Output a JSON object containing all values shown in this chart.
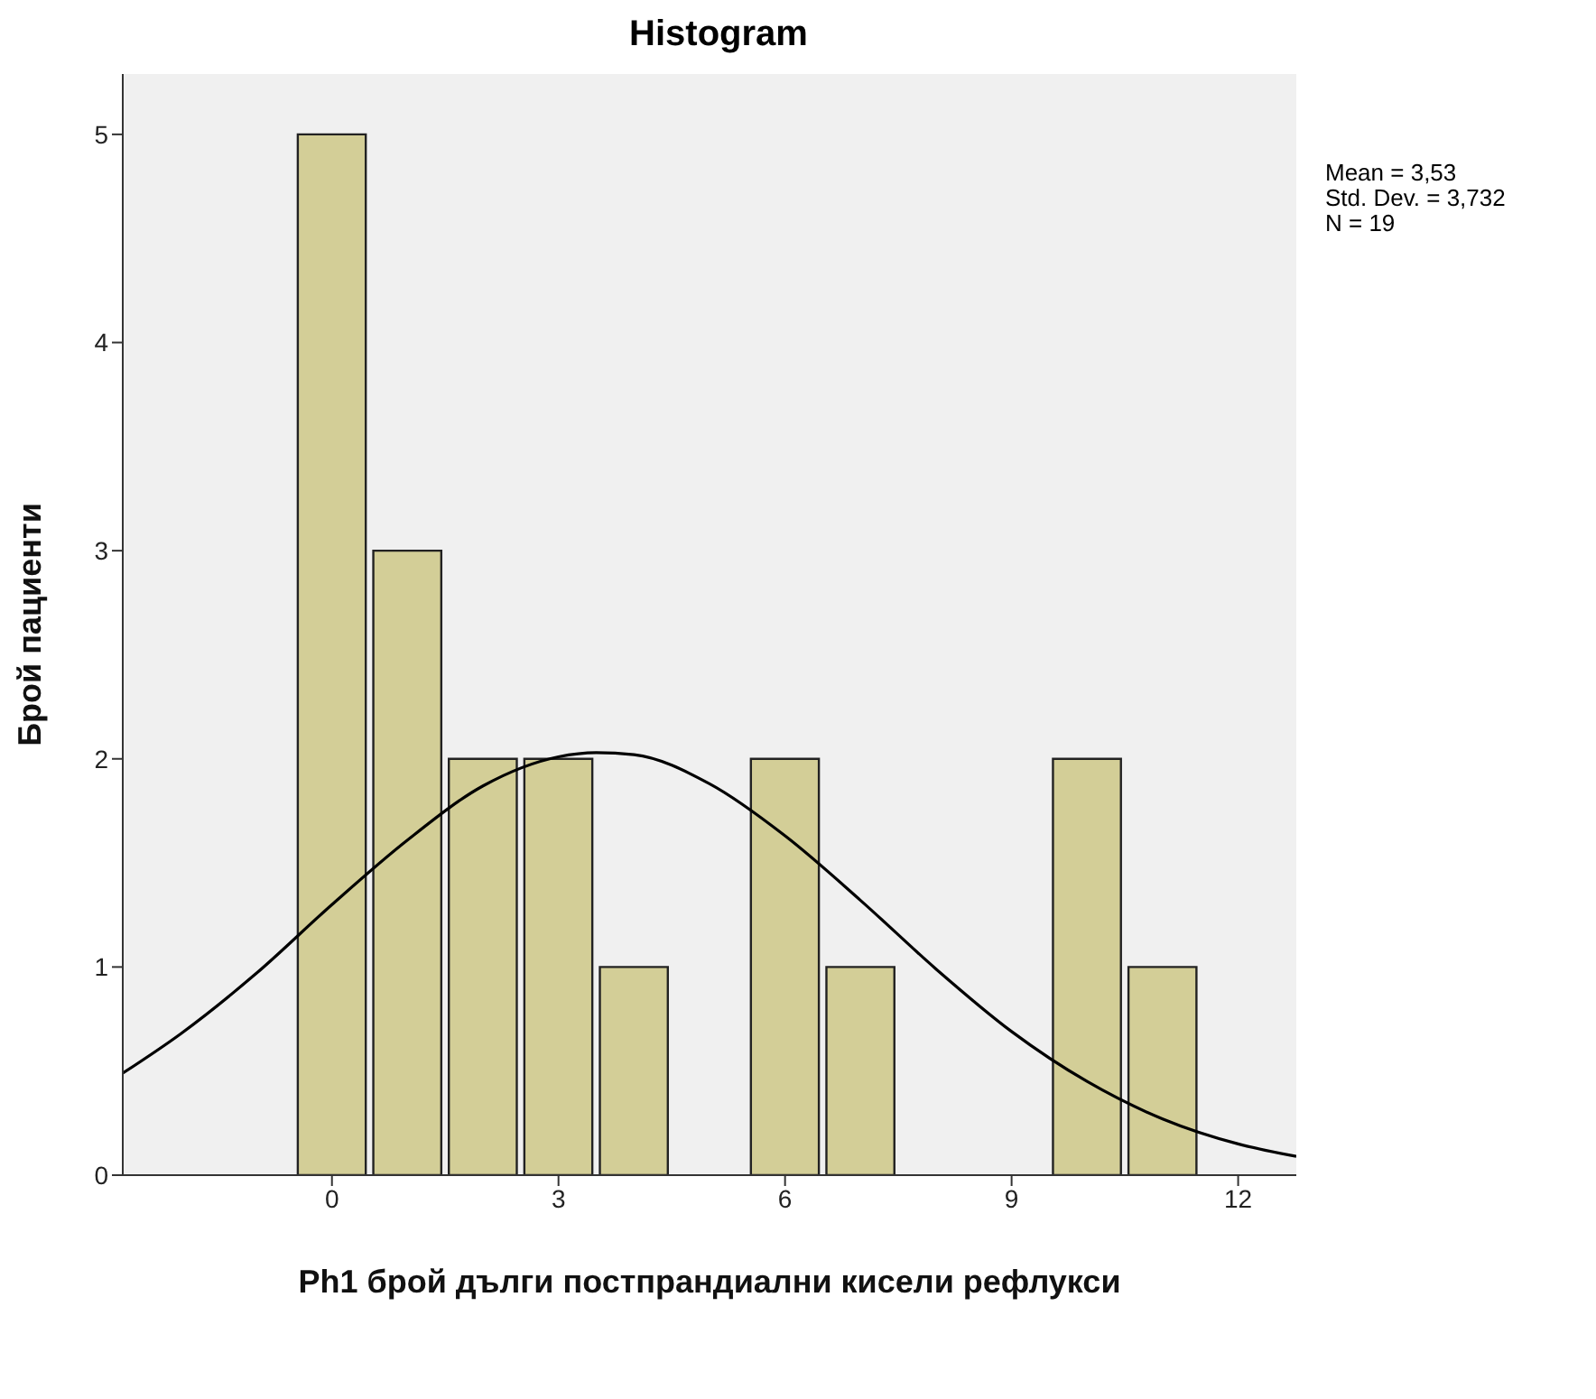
{
  "chart_data": {
    "type": "histogram",
    "title": "Histogram",
    "xlabel": "Ph1 брой дълги постпрандиални кисели рефлукси",
    "ylabel": "Брой пациенти",
    "annotations": [
      "Mean = 3,53",
      "Std. Dev. = 3,732",
      "N = 19"
    ],
    "bins": [
      -0.5,
      0.5,
      1.5,
      2.5,
      3.5,
      4.5,
      5.5,
      6.5,
      7.5,
      8.5,
      9.5,
      10.5,
      11.5
    ],
    "series": [
      {
        "color": "#d3ce97",
        "values": [
          5,
          3,
          2,
          2,
          1,
          0,
          2,
          1,
          0,
          0,
          2,
          1
        ]
      },
      {
        "type": "line",
        "color": "#000000",
        "marker": "none",
        "x": [
          -2.77,
          -2,
          -1,
          0,
          1,
          2,
          3,
          3.5,
          4,
          5,
          6,
          7,
          8,
          9,
          10,
          11,
          12,
          12.77
        ],
        "values": [
          0.49,
          0.68,
          0.97,
          1.3,
          1.61,
          1.87,
          2.01,
          2.03,
          2.02,
          1.88,
          1.63,
          1.32,
          0.99,
          0.69,
          0.45,
          0.27,
          0.15,
          0.09
        ]
      }
    ],
    "xlim": [
      -2.77,
      12.77
    ],
    "xticks": [
      0,
      3,
      6,
      9,
      12
    ],
    "ylim": [
      0,
      5.29
    ],
    "yticks": [
      0,
      1,
      2,
      3,
      4,
      5
    ],
    "grid": false
  }
}
